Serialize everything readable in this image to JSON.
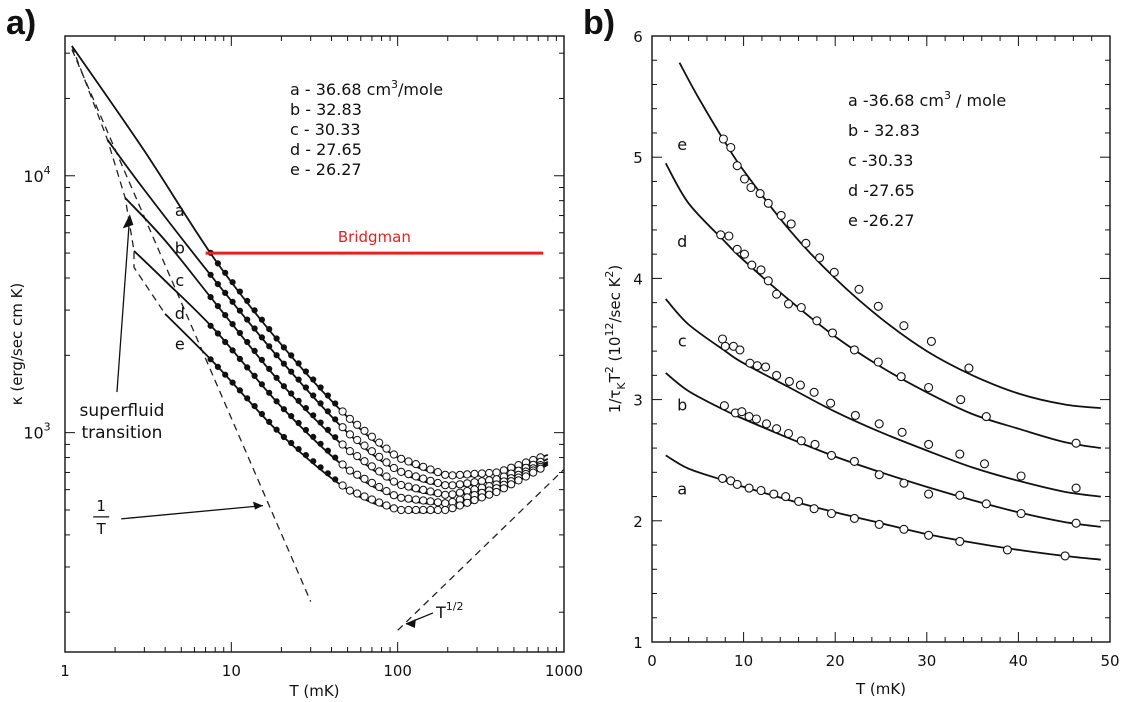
{
  "panels": {
    "a_label": "a)",
    "b_label": "b)"
  },
  "chart_data": [
    {
      "type": "line",
      "scale": {
        "x": "log",
        "y": "log"
      },
      "xlabel": "T (mK)",
      "ylabel": "κ (erg/sec cm K)",
      "xlim": [
        1,
        1000
      ],
      "ylim": [
        140,
        35000
      ],
      "xticks": [
        1,
        10,
        100,
        1000
      ],
      "xtick_labels": [
        "1",
        "10",
        "100",
        "1000"
      ],
      "yticks": [
        1000,
        10000
      ],
      "ytick_labels": [
        {
          "base": "10",
          "exp": "3"
        },
        {
          "base": "10",
          "exp": "4"
        }
      ],
      "legend": [
        {
          "name": "a",
          "label": "a - 36.68",
          "unit": "cm",
          "unit_exp": "3",
          "unit_tail": "/mole"
        },
        {
          "name": "b",
          "label": "b - 32.83"
        },
        {
          "name": "c",
          "label": "c - 30.33"
        },
        {
          "name": "d",
          "label": "d - 27.65"
        },
        {
          "name": "e",
          "label": "e - 26.27"
        }
      ],
      "series": [
        {
          "name": "a",
          "label_at": [
            4.9,
            7300
          ],
          "line": [
            [
              1.1,
              32000
            ],
            [
              3,
              12500
            ],
            [
              8,
              4700
            ],
            [
              20,
              2200
            ],
            [
              50,
              1150
            ],
            [
              100,
              800
            ],
            [
              200,
              680
            ],
            [
              400,
              700
            ],
            [
              800,
              820
            ]
          ],
          "points_from": 7.5
        },
        {
          "name": "b",
          "label_at": [
            4.9,
            5200
          ],
          "line": [
            [
              1.8,
              13800
            ],
            [
              3,
              8800
            ],
            [
              8,
              3900
            ],
            [
              20,
              1900
            ],
            [
              50,
              1000
            ],
            [
              100,
              710
            ],
            [
              200,
              620
            ],
            [
              400,
              660
            ],
            [
              800,
              790
            ]
          ],
          "points_from": 7.5
        },
        {
          "name": "c",
          "label_at": [
            4.9,
            3900
          ],
          "line": [
            [
              2.3,
              8200
            ],
            [
              4,
              5600
            ],
            [
              8,
              3200
            ],
            [
              20,
              1550
            ],
            [
              50,
              860
            ],
            [
              100,
              630
            ],
            [
              200,
              570
            ],
            [
              400,
              630
            ],
            [
              800,
              770
            ]
          ],
          "points_from": 7.5
        },
        {
          "name": "d",
          "label_at": [
            4.9,
            2900
          ],
          "line": [
            [
              2.6,
              5100
            ],
            [
              4,
              3900
            ],
            [
              8,
              2500
            ],
            [
              20,
              1260
            ],
            [
              50,
              720
            ],
            [
              100,
              560
            ],
            [
              200,
              530
            ],
            [
              400,
              610
            ],
            [
              800,
              760
            ]
          ],
          "points_from": 7.5
        },
        {
          "name": "e",
          "label_at": [
            4.9,
            2200
          ],
          "line": [
            [
              4,
              2900
            ],
            [
              8,
              1850
            ],
            [
              20,
              980
            ],
            [
              50,
              600
            ],
            [
              100,
              500
            ],
            [
              200,
              500
            ],
            [
              400,
              590
            ],
            [
              800,
              750
            ]
          ],
          "points_from": 7.5
        }
      ],
      "dashed_lines": [
        {
          "name": "superfluid-envelope",
          "points": [
            [
              1.1,
              32000
            ],
            [
              1.8,
              13800
            ],
            [
              2.3,
              8200
            ],
            [
              2.6,
              5100
            ],
            [
              2.6,
              4400
            ],
            [
              4,
              2900
            ]
          ]
        },
        {
          "name": "one-over-t-line",
          "points": [
            [
              1.1,
              31000
            ],
            [
              30,
              220
            ]
          ]
        },
        {
          "name": "t-half-line",
          "points": [
            [
              100,
              170
            ],
            [
              1000,
              720
            ]
          ]
        }
      ],
      "reference_line": {
        "label": "Bridgman",
        "color": "#e8201f",
        "y": 5000,
        "x": [
          7,
          750
        ]
      },
      "annotations": [
        {
          "lines": [
            "superfluid",
            "transition"
          ],
          "at": [
            2.2,
            1080
          ]
        },
        {
          "frac_num": "1",
          "frac_den": "T",
          "at": [
            1.65,
            470
          ]
        },
        {
          "text": "T",
          "exp": "1/2",
          "at": [
            170,
            190
          ]
        }
      ]
    },
    {
      "type": "line",
      "xlabel": "T (mK)",
      "ylabel": "1/τ",
      "ylabel_sub": "K",
      "ylabel_tail": "T",
      "ylabel_exp": "2",
      "ylabel_unit": " (10",
      "ylabel_unit_exp": "12",
      "ylabel_unit_tail": "/sec K",
      "ylabel_unit_exp2": "2",
      "ylabel_close": ")",
      "xlim": [
        0,
        50
      ],
      "ylim": [
        1,
        6
      ],
      "xticks": [
        0,
        10,
        20,
        30,
        40,
        50
      ],
      "yticks": [
        1,
        2,
        3,
        4,
        5,
        6
      ],
      "legend": [
        {
          "name": "a",
          "label": "a -36.68",
          "unit": "cm",
          "unit_exp": "3",
          "unit_tail": " / mole"
        },
        {
          "name": "b",
          "label": "b - 32.83"
        },
        {
          "name": "c",
          "label": "c -30.33"
        },
        {
          "name": "d",
          "label": "d -27.65"
        },
        {
          "name": "e",
          "label": "e -26.27"
        }
      ],
      "series": [
        {
          "name": "e",
          "label_at": [
            3.3,
            5.1
          ],
          "curve": [
            [
              3,
              5.78
            ],
            [
              5,
              5.5
            ],
            [
              8,
              5.12
            ],
            [
              10,
              4.89
            ],
            [
              15,
              4.4
            ],
            [
              20,
              4.0
            ],
            [
              25,
              3.67
            ],
            [
              30,
              3.4
            ],
            [
              35,
              3.2
            ],
            [
              40,
              3.05
            ],
            [
              45,
              2.96
            ],
            [
              49,
              2.93
            ]
          ],
          "points": [
            [
              7.8,
              5.15
            ],
            [
              8.6,
              5.08
            ],
            [
              9.3,
              4.93
            ],
            [
              10.1,
              4.82
            ],
            [
              10.8,
              4.75
            ],
            [
              11.8,
              4.7
            ],
            [
              12.7,
              4.62
            ],
            [
              14.1,
              4.52
            ],
            [
              15.2,
              4.45
            ],
            [
              16.8,
              4.29
            ],
            [
              18.3,
              4.17
            ],
            [
              19.9,
              4.05
            ],
            [
              22.6,
              3.91
            ],
            [
              24.7,
              3.77
            ],
            [
              27.5,
              3.61
            ],
            [
              30.5,
              3.48
            ],
            [
              34.6,
              3.26
            ]
          ]
        },
        {
          "name": "d",
          "label_at": [
            3.3,
            4.3
          ],
          "curve": [
            [
              1.5,
              4.95
            ],
            [
              4,
              4.62
            ],
            [
              8,
              4.3
            ],
            [
              10,
              4.15
            ],
            [
              15,
              3.82
            ],
            [
              20,
              3.52
            ],
            [
              25,
              3.27
            ],
            [
              30,
              3.06
            ],
            [
              35,
              2.88
            ],
            [
              40,
              2.76
            ],
            [
              45,
              2.65
            ],
            [
              49,
              2.6
            ]
          ],
          "points": [
            [
              7.5,
              4.36
            ],
            [
              8.4,
              4.35
            ],
            [
              9.3,
              4.24
            ],
            [
              10.1,
              4.2
            ],
            [
              10.9,
              4.11
            ],
            [
              11.9,
              4.07
            ],
            [
              12.7,
              3.98
            ],
            [
              13.6,
              3.87
            ],
            [
              14.9,
              3.79
            ],
            [
              16.3,
              3.76
            ],
            [
              18.0,
              3.65
            ],
            [
              19.7,
              3.55
            ],
            [
              22.1,
              3.41
            ],
            [
              24.7,
              3.31
            ],
            [
              27.2,
              3.19
            ],
            [
              30.2,
              3.1
            ],
            [
              33.7,
              3.0
            ],
            [
              36.5,
              2.86
            ],
            [
              46.3,
              2.64
            ]
          ]
        },
        {
          "name": "c",
          "label_at": [
            3.3,
            3.48
          ],
          "curve": [
            [
              1.5,
              3.83
            ],
            [
              4,
              3.62
            ],
            [
              8,
              3.4
            ],
            [
              10,
              3.3
            ],
            [
              15,
              3.1
            ],
            [
              20,
              2.9
            ],
            [
              25,
              2.73
            ],
            [
              30,
              2.58
            ],
            [
              35,
              2.44
            ],
            [
              40,
              2.33
            ],
            [
              45,
              2.24
            ],
            [
              49,
              2.2
            ]
          ],
          "points": [
            [
              7.7,
              3.5
            ],
            [
              8.0,
              3.44
            ],
            [
              8.9,
              3.44
            ],
            [
              9.6,
              3.41
            ],
            [
              10.7,
              3.3
            ],
            [
              11.5,
              3.28
            ],
            [
              12.4,
              3.27
            ],
            [
              13.6,
              3.2
            ],
            [
              15.0,
              3.15
            ],
            [
              16.2,
              3.12
            ],
            [
              17.7,
              3.06
            ],
            [
              19.5,
              2.97
            ],
            [
              22.2,
              2.87
            ],
            [
              24.8,
              2.8
            ],
            [
              27.3,
              2.73
            ],
            [
              30.2,
              2.63
            ],
            [
              33.6,
              2.55
            ],
            [
              36.3,
              2.47
            ],
            [
              40.3,
              2.37
            ],
            [
              46.3,
              2.27
            ]
          ]
        },
        {
          "name": "b",
          "label_at": [
            3.3,
            2.95
          ],
          "curve": [
            [
              1.5,
              3.22
            ],
            [
              4,
              3.07
            ],
            [
              8,
              2.91
            ],
            [
              10,
              2.84
            ],
            [
              15,
              2.68
            ],
            [
              20,
              2.53
            ],
            [
              25,
              2.4
            ],
            [
              30,
              2.28
            ],
            [
              35,
              2.17
            ],
            [
              40,
              2.07
            ],
            [
              45,
              1.99
            ],
            [
              49,
              1.95
            ]
          ],
          "points": [
            [
              7.9,
              2.95
            ],
            [
              9.1,
              2.89
            ],
            [
              9.8,
              2.9
            ],
            [
              10.6,
              2.86
            ],
            [
              11.4,
              2.84
            ],
            [
              12.5,
              2.8
            ],
            [
              13.6,
              2.76
            ],
            [
              14.9,
              2.72
            ],
            [
              16.3,
              2.66
            ],
            [
              17.8,
              2.63
            ],
            [
              19.6,
              2.54
            ],
            [
              22.1,
              2.49
            ],
            [
              24.8,
              2.38
            ],
            [
              27.5,
              2.31
            ],
            [
              30.2,
              2.22
            ],
            [
              33.6,
              2.21
            ],
            [
              36.5,
              2.14
            ],
            [
              40.3,
              2.06
            ],
            [
              46.3,
              1.98
            ]
          ]
        },
        {
          "name": "a",
          "label_at": [
            3.3,
            2.26
          ],
          "curve": [
            [
              1.5,
              2.54
            ],
            [
              4,
              2.43
            ],
            [
              8,
              2.33
            ],
            [
              10,
              2.28
            ],
            [
              15,
              2.17
            ],
            [
              20,
              2.07
            ],
            [
              25,
              1.98
            ],
            [
              30,
              1.89
            ],
            [
              35,
              1.82
            ],
            [
              40,
              1.76
            ],
            [
              45,
              1.71
            ],
            [
              49,
              1.68
            ]
          ],
          "points": [
            [
              7.7,
              2.35
            ],
            [
              8.6,
              2.33
            ],
            [
              9.3,
              2.3
            ],
            [
              10.6,
              2.27
            ],
            [
              11.9,
              2.25
            ],
            [
              13.3,
              2.22
            ],
            [
              14.6,
              2.2
            ],
            [
              16.0,
              2.16
            ],
            [
              17.7,
              2.1
            ],
            [
              19.6,
              2.06
            ],
            [
              22.1,
              2.02
            ],
            [
              24.8,
              1.97
            ],
            [
              27.5,
              1.93
            ],
            [
              30.2,
              1.88
            ],
            [
              33.6,
              1.83
            ],
            [
              38.8,
              1.76
            ],
            [
              45.1,
              1.71
            ]
          ]
        }
      ]
    }
  ]
}
